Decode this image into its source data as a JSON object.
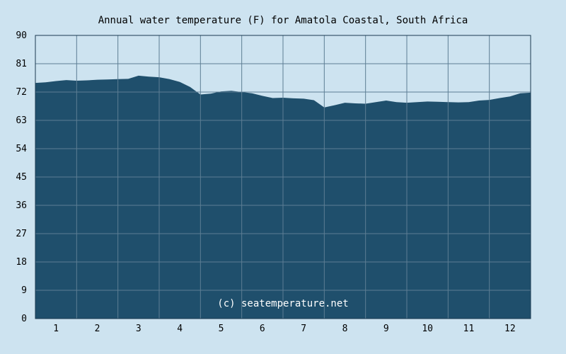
{
  "chart_data": {
    "type": "area",
    "title": "Annual water temperature (F) for Amatola Coastal, South Africa",
    "xlabel": "",
    "ylabel": "",
    "ylim": [
      0,
      90
    ],
    "y_ticks": [
      "0",
      "9",
      "18",
      "27",
      "36",
      "45",
      "54",
      "63",
      "72",
      "81",
      "90"
    ],
    "x_ticks": [
      "1",
      "2",
      "3",
      "4",
      "5",
      "6",
      "7",
      "8",
      "9",
      "10",
      "11",
      "12"
    ],
    "xlim": [
      0.5,
      12.5
    ],
    "grid": true,
    "series": [
      {
        "x": [
          0.5,
          0.75,
          1.0,
          1.25,
          1.5,
          1.75,
          2.0,
          2.25,
          2.5,
          2.75,
          3.0,
          3.25,
          3.5,
          3.75,
          4.0,
          4.25,
          4.5,
          4.75,
          5.0,
          5.25,
          5.5,
          5.75,
          6.0,
          6.25,
          6.5,
          6.75,
          7.0,
          7.25,
          7.5,
          7.75,
          8.0,
          8.25,
          8.5,
          8.75,
          9.0,
          9.25,
          9.5,
          9.75,
          10.0,
          10.25,
          10.5,
          10.75,
          11.0,
          11.25,
          11.5,
          11.75,
          12.0,
          12.25,
          12.5
        ],
        "values": [
          74.9,
          75.1,
          75.5,
          75.8,
          75.6,
          75.7,
          75.9,
          76.0,
          76.1,
          76.2,
          77.2,
          76.9,
          76.7,
          76.1,
          75.2,
          73.6,
          71.2,
          71.5,
          72.2,
          72.4,
          72.0,
          71.6,
          70.8,
          70.1,
          70.2,
          70.0,
          69.9,
          69.4,
          67.1,
          67.8,
          68.6,
          68.4,
          68.3,
          68.8,
          69.3,
          68.8,
          68.6,
          68.8,
          69.0,
          68.9,
          68.8,
          68.7,
          68.8,
          69.3,
          69.5,
          70.1,
          70.6,
          71.6,
          71.8
        ]
      }
    ],
    "colors": {
      "background": "#cde3f0",
      "area": "#1f4f6c",
      "grid": "#5d7e94",
      "axis": "#1a3a50",
      "credit": "#ffffff"
    }
  },
  "credit": "(c) seatemperature.net"
}
